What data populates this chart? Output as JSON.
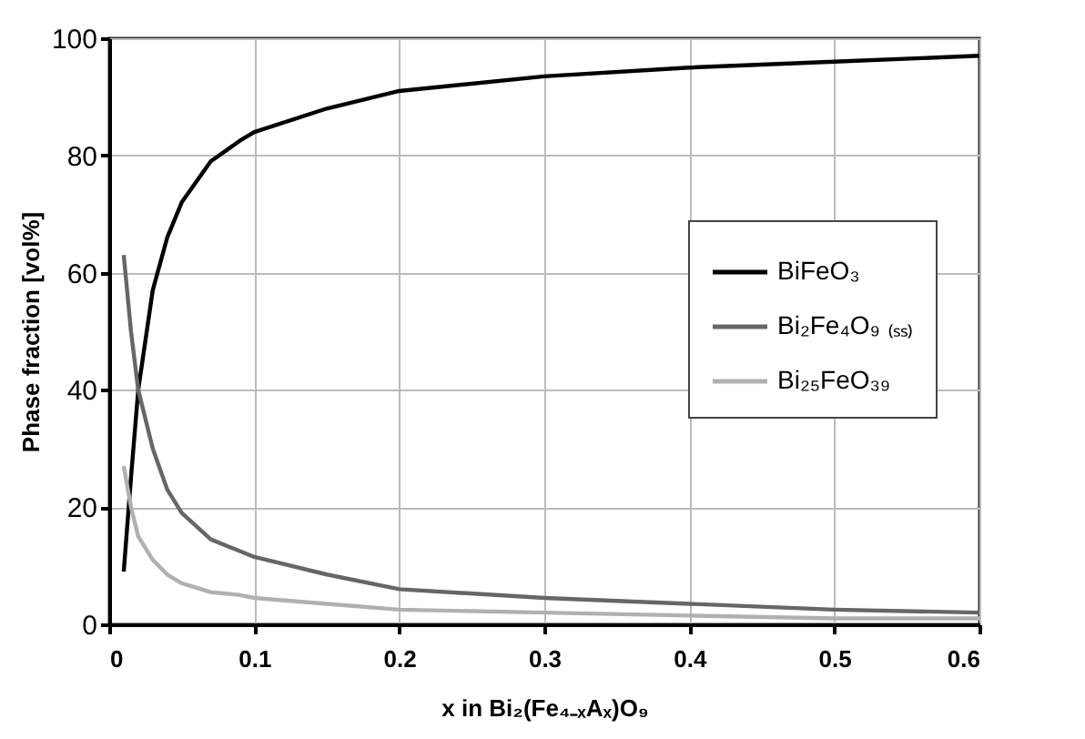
{
  "chart_data": {
    "type": "line",
    "xlabel": "x in Bi₂(Fe₄₋ₓAₓ)O₉",
    "ylabel": "Phase fraction [vol%]",
    "x": [
      0.01,
      0.015,
      0.02,
      0.03,
      0.04,
      0.05,
      0.07,
      0.09,
      0.1,
      0.15,
      0.2,
      0.3,
      0.4,
      0.5,
      0.6
    ],
    "series": [
      {
        "name": "BiFeO₃",
        "color": "#000000",
        "values": [
          9,
          25,
          40,
          57,
          66,
          72,
          79,
          82.5,
          84,
          88,
          91,
          93.5,
          95,
          96,
          97
        ]
      },
      {
        "name": "Bi₂Fe₄O₉ ₍ₛₛ₎",
        "color": "#666666",
        "values": [
          63,
          50,
          40,
          30,
          23,
          19,
          14.5,
          12.5,
          11.5,
          8.5,
          6,
          4.5,
          3.5,
          2.5,
          2
        ]
      },
      {
        "name": "Bi₂₅FeO₃₉",
        "color": "#b0b0b0",
        "values": [
          27,
          20,
          15,
          11,
          8.5,
          7,
          5.5,
          5,
          4.5,
          3.5,
          2.5,
          2,
          1.5,
          1,
          1
        ]
      }
    ],
    "xlim": [
      0,
      0.6
    ],
    "xticks": [
      0,
      0.1,
      0.2,
      0.3,
      0.4,
      0.5,
      0.6
    ],
    "ylim": [
      0,
      100
    ],
    "yticks": [
      0,
      20,
      40,
      60,
      80,
      100
    ],
    "grid": true,
    "legend": "right",
    "marker": "none",
    "line_style": "solid"
  }
}
